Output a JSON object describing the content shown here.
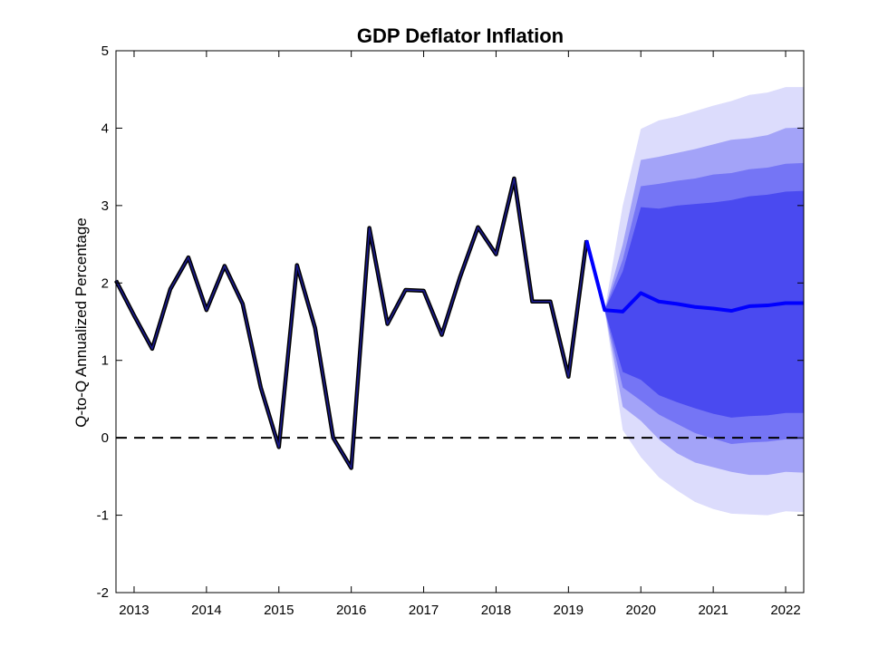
{
  "chart_data": {
    "type": "area",
    "title": "GDP Deflator Inflation",
    "xlabel": "",
    "ylabel": "Q-to-Q Annualized Percentage",
    "xlim": [
      2012.75,
      2022.25
    ],
    "ylim": [
      -2,
      5
    ],
    "x_ticks": [
      2013,
      2014,
      2015,
      2016,
      2017,
      2018,
      2019,
      2020,
      2021,
      2022
    ],
    "x_tick_labels": [
      "2013",
      "2014",
      "2015",
      "2016",
      "2017",
      "2018",
      "2019",
      "2020",
      "2021",
      "2022"
    ],
    "y_ticks": [
      -2,
      -1,
      0,
      1,
      2,
      3,
      4,
      5
    ],
    "y_tick_labels": [
      "-2",
      "-1",
      "0",
      "1",
      "2",
      "3",
      "4",
      "5"
    ],
    "reference_line": {
      "y": 0,
      "style": "dashed"
    },
    "colors": {
      "history_outline": "#000000",
      "history_line": "#1a1a8a",
      "forecast_line": "#0000ff",
      "band_inner": "#4a4af0",
      "band_2": "#7575f5",
      "band_3": "#a3a3f8",
      "band_outer": "#dcdcfc"
    },
    "history": {
      "x": [
        2012.75,
        2013.0,
        2013.25,
        2013.5,
        2013.75,
        2014.0,
        2014.25,
        2014.5,
        2014.75,
        2015.0,
        2015.25,
        2015.5,
        2015.75,
        2016.0,
        2016.25,
        2016.5,
        2016.75,
        2017.0,
        2017.25,
        2017.5,
        2017.75,
        2018.0,
        2018.25,
        2018.5,
        2018.75,
        2019.0,
        2019.25
      ],
      "y": [
        2.03,
        1.58,
        1.15,
        1.92,
        2.33,
        1.65,
        2.22,
        1.73,
        0.65,
        -0.12,
        2.23,
        1.42,
        0.0,
        -0.39,
        2.71,
        1.47,
        1.91,
        1.9,
        1.33,
        2.07,
        2.72,
        2.37,
        3.35,
        1.76,
        1.76,
        0.79,
        2.55
      ]
    },
    "forecast": {
      "x": [
        2019.25,
        2019.5,
        2019.75,
        2020.0,
        2020.25,
        2020.5,
        2020.75,
        2021.0,
        2021.25,
        2021.5,
        2021.75,
        2022.0,
        2022.25
      ],
      "median": [
        2.55,
        1.65,
        1.63,
        1.87,
        1.76,
        1.73,
        1.69,
        1.67,
        1.64,
        1.7,
        1.71,
        1.74,
        1.74
      ],
      "bands": [
        {
          "level": "outer",
          "upper": [
            2.55,
            1.65,
            3.0,
            3.99,
            4.1,
            4.15,
            4.22,
            4.29,
            4.35,
            4.43,
            4.46,
            4.53,
            4.53
          ],
          "lower": [
            2.55,
            1.65,
            0.1,
            -0.25,
            -0.51,
            -0.68,
            -0.83,
            -0.92,
            -0.98,
            -0.99,
            -1.0,
            -0.95,
            -0.96
          ]
        },
        {
          "level": "third",
          "upper": [
            2.55,
            1.65,
            2.5,
            3.59,
            3.63,
            3.68,
            3.73,
            3.79,
            3.85,
            3.87,
            3.91,
            4.0,
            4.01
          ],
          "lower": [
            2.55,
            1.65,
            0.4,
            0.22,
            -0.02,
            -0.2,
            -0.32,
            -0.38,
            -0.44,
            -0.48,
            -0.48,
            -0.44,
            -0.45
          ]
        },
        {
          "level": "second",
          "upper": [
            2.55,
            1.65,
            2.3,
            3.25,
            3.28,
            3.32,
            3.35,
            3.4,
            3.42,
            3.47,
            3.49,
            3.54,
            3.55
          ],
          "lower": [
            2.55,
            1.65,
            0.65,
            0.48,
            0.3,
            0.18,
            0.06,
            -0.01,
            -0.08,
            -0.06,
            -0.05,
            -0.02,
            -0.02
          ]
        },
        {
          "level": "inner",
          "upper": [
            2.55,
            1.65,
            2.15,
            2.98,
            2.96,
            3.0,
            3.02,
            3.04,
            3.07,
            3.12,
            3.14,
            3.18,
            3.19
          ],
          "lower": [
            2.55,
            1.65,
            0.85,
            0.75,
            0.55,
            0.46,
            0.38,
            0.31,
            0.26,
            0.28,
            0.29,
            0.32,
            0.32
          ]
        }
      ]
    }
  }
}
